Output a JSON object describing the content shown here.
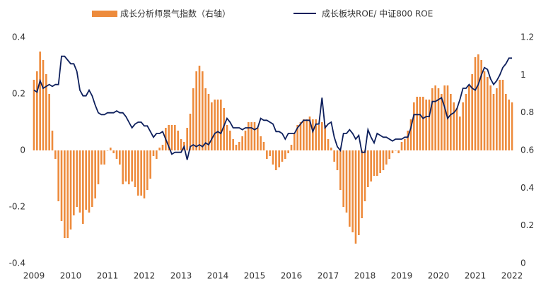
{
  "chart_data": {
    "type": "bar-line",
    "categories": [
      "2009",
      null,
      null,
      null,
      null,
      null,
      null,
      null,
      null,
      null,
      null,
      null,
      "2010",
      null,
      null,
      null,
      null,
      null,
      null,
      null,
      null,
      null,
      null,
      null,
      "2011",
      null,
      null,
      null,
      null,
      null,
      null,
      null,
      null,
      null,
      null,
      null,
      "2012",
      null,
      null,
      null,
      null,
      null,
      null,
      null,
      null,
      null,
      null,
      null,
      "2013",
      null,
      null,
      null,
      null,
      null,
      null,
      null,
      null,
      null,
      null,
      null,
      "2014",
      null,
      null,
      null,
      null,
      null,
      null,
      null,
      null,
      null,
      null,
      null,
      "2015",
      null,
      null,
      null,
      null,
      null,
      null,
      null,
      null,
      null,
      null,
      null,
      "2016",
      null,
      null,
      null,
      null,
      null,
      null,
      null,
      null,
      null,
      null,
      null,
      "2017",
      null,
      null,
      null,
      null,
      null,
      null,
      null,
      null,
      null,
      null,
      null,
      "2018",
      null,
      null,
      null,
      null,
      null,
      null,
      null,
      null,
      null,
      null,
      null,
      "2019",
      null,
      null,
      null,
      null,
      null,
      null,
      null,
      null,
      null,
      null,
      null,
      "2020",
      null,
      null,
      null,
      null,
      null,
      null,
      null,
      null,
      null,
      null,
      null,
      "2021",
      null,
      null,
      null,
      null,
      null,
      null,
      null,
      null,
      null,
      null,
      null,
      "2022"
    ],
    "series": [
      {
        "name": "成长分析师景气指数（右轴）",
        "type": "bar",
        "color": "#ed8b3c",
        "axis": "y",
        "values": [
          0.25,
          0.28,
          0.35,
          0.32,
          0.27,
          0.2,
          0.07,
          -0.03,
          -0.18,
          -0.25,
          -0.31,
          -0.31,
          -0.28,
          -0.23,
          -0.2,
          -0.22,
          -0.26,
          -0.21,
          -0.22,
          -0.2,
          -0.17,
          -0.12,
          -0.05,
          -0.05,
          0,
          0.01,
          -0.01,
          -0.03,
          -0.05,
          -0.12,
          -0.11,
          -0.12,
          -0.11,
          -0.13,
          -0.16,
          -0.16,
          -0.17,
          -0.14,
          -0.1,
          -0.02,
          -0.03,
          0.01,
          0.02,
          0.08,
          0.09,
          0.09,
          0.09,
          0.07,
          0.04,
          0.03,
          0.08,
          0.13,
          0.22,
          0.28,
          0.3,
          0.28,
          0.22,
          0.2,
          0.17,
          0.18,
          0.18,
          0.18,
          0.15,
          0.09,
          0.07,
          0.04,
          0.02,
          0.03,
          0.05,
          0.07,
          0.1,
          0.1,
          0.1,
          0.08,
          0.05,
          0.03,
          -0.03,
          -0.02,
          -0.05,
          -0.07,
          -0.06,
          -0.04,
          -0.03,
          -0.01,
          0.02,
          0.06,
          0.09,
          0.1,
          0.11,
          0.11,
          0.12,
          0.11,
          0.11,
          0.09,
          0.1,
          0.09,
          0.04,
          0.01,
          -0.04,
          -0.07,
          -0.14,
          -0.2,
          -0.22,
          -0.27,
          -0.29,
          -0.33,
          -0.3,
          -0.24,
          -0.18,
          -0.13,
          -0.11,
          -0.09,
          -0.09,
          -0.08,
          -0.07,
          -0.05,
          -0.03,
          -0.01,
          0,
          -0.01,
          0.03,
          0.04,
          0.07,
          0.11,
          0.17,
          0.19,
          0.19,
          0.19,
          0.18,
          0.18,
          0.22,
          0.23,
          0.22,
          0.2,
          0.23,
          0.23,
          0.2,
          0.17,
          0.15,
          0.12,
          0.17,
          0.2,
          0.23,
          0.27,
          0.33,
          0.34,
          0.32,
          0.28,
          0.26,
          0.23,
          0.2,
          0.22,
          0.25,
          0.25,
          0.2,
          0.18,
          0.17
        ]
      },
      {
        "name": "成长板块ROE/ 中证800 ROE",
        "type": "line",
        "color": "#0d1f5c",
        "axis": "y2",
        "values": [
          0.92,
          0.91,
          0.97,
          0.93,
          0.94,
          0.95,
          0.94,
          0.95,
          0.95,
          1.1,
          1.1,
          1.08,
          1.06,
          1.06,
          1.02,
          0.92,
          0.89,
          0.89,
          0.92,
          0.89,
          0.84,
          0.8,
          0.79,
          0.79,
          0.8,
          0.8,
          0.8,
          0.81,
          0.8,
          0.8,
          0.78,
          0.75,
          0.72,
          0.74,
          0.75,
          0.75,
          0.73,
          0.73,
          0.7,
          0.67,
          0.69,
          0.69,
          0.7,
          0.66,
          0.62,
          0.58,
          0.59,
          0.59,
          0.59,
          0.62,
          0.55,
          0.62,
          0.63,
          0.62,
          0.63,
          0.62,
          0.64,
          0.63,
          0.66,
          0.69,
          0.7,
          0.69,
          0.73,
          0.77,
          0.75,
          0.72,
          0.72,
          0.72,
          0.71,
          0.72,
          0.72,
          0.72,
          0.71,
          0.72,
          0.77,
          0.76,
          0.76,
          0.75,
          0.74,
          0.7,
          0.7,
          0.69,
          0.66,
          0.69,
          0.69,
          0.69,
          0.72,
          0.74,
          0.76,
          0.76,
          0.76,
          0.7,
          0.74,
          0.74,
          0.88,
          0.72,
          0.74,
          0.75,
          0.67,
          0.62,
          0.6,
          0.69,
          0.69,
          0.71,
          0.69,
          0.66,
          0.68,
          0.59,
          0.59,
          0.71,
          0.67,
          0.64,
          0.69,
          0.68,
          0.67,
          0.67,
          0.66,
          0.65,
          0.66,
          0.66,
          0.66,
          0.67,
          0.67,
          0.72,
          0.79,
          0.79,
          0.79,
          0.77,
          0.78,
          0.78,
          0.86,
          0.86,
          0.87,
          0.88,
          0.83,
          0.77,
          0.79,
          0.8,
          0.82,
          0.87,
          0.93,
          0.93,
          0.95,
          0.93,
          0.92,
          0.95,
          1.0,
          1.04,
          1.03,
          0.98,
          0.95,
          0.97,
          1.0,
          1.04,
          1.06,
          1.09,
          1.09
        ]
      }
    ],
    "ylim": [
      -0.4,
      0.4
    ],
    "yticks": [
      -0.4,
      -0.2,
      0,
      0.2,
      0.4
    ],
    "y2lim": [
      0,
      1.2
    ],
    "y2ticks": [
      0,
      0.2,
      0.4,
      0.6,
      0.8,
      1,
      1.2
    ],
    "legend": "top"
  }
}
